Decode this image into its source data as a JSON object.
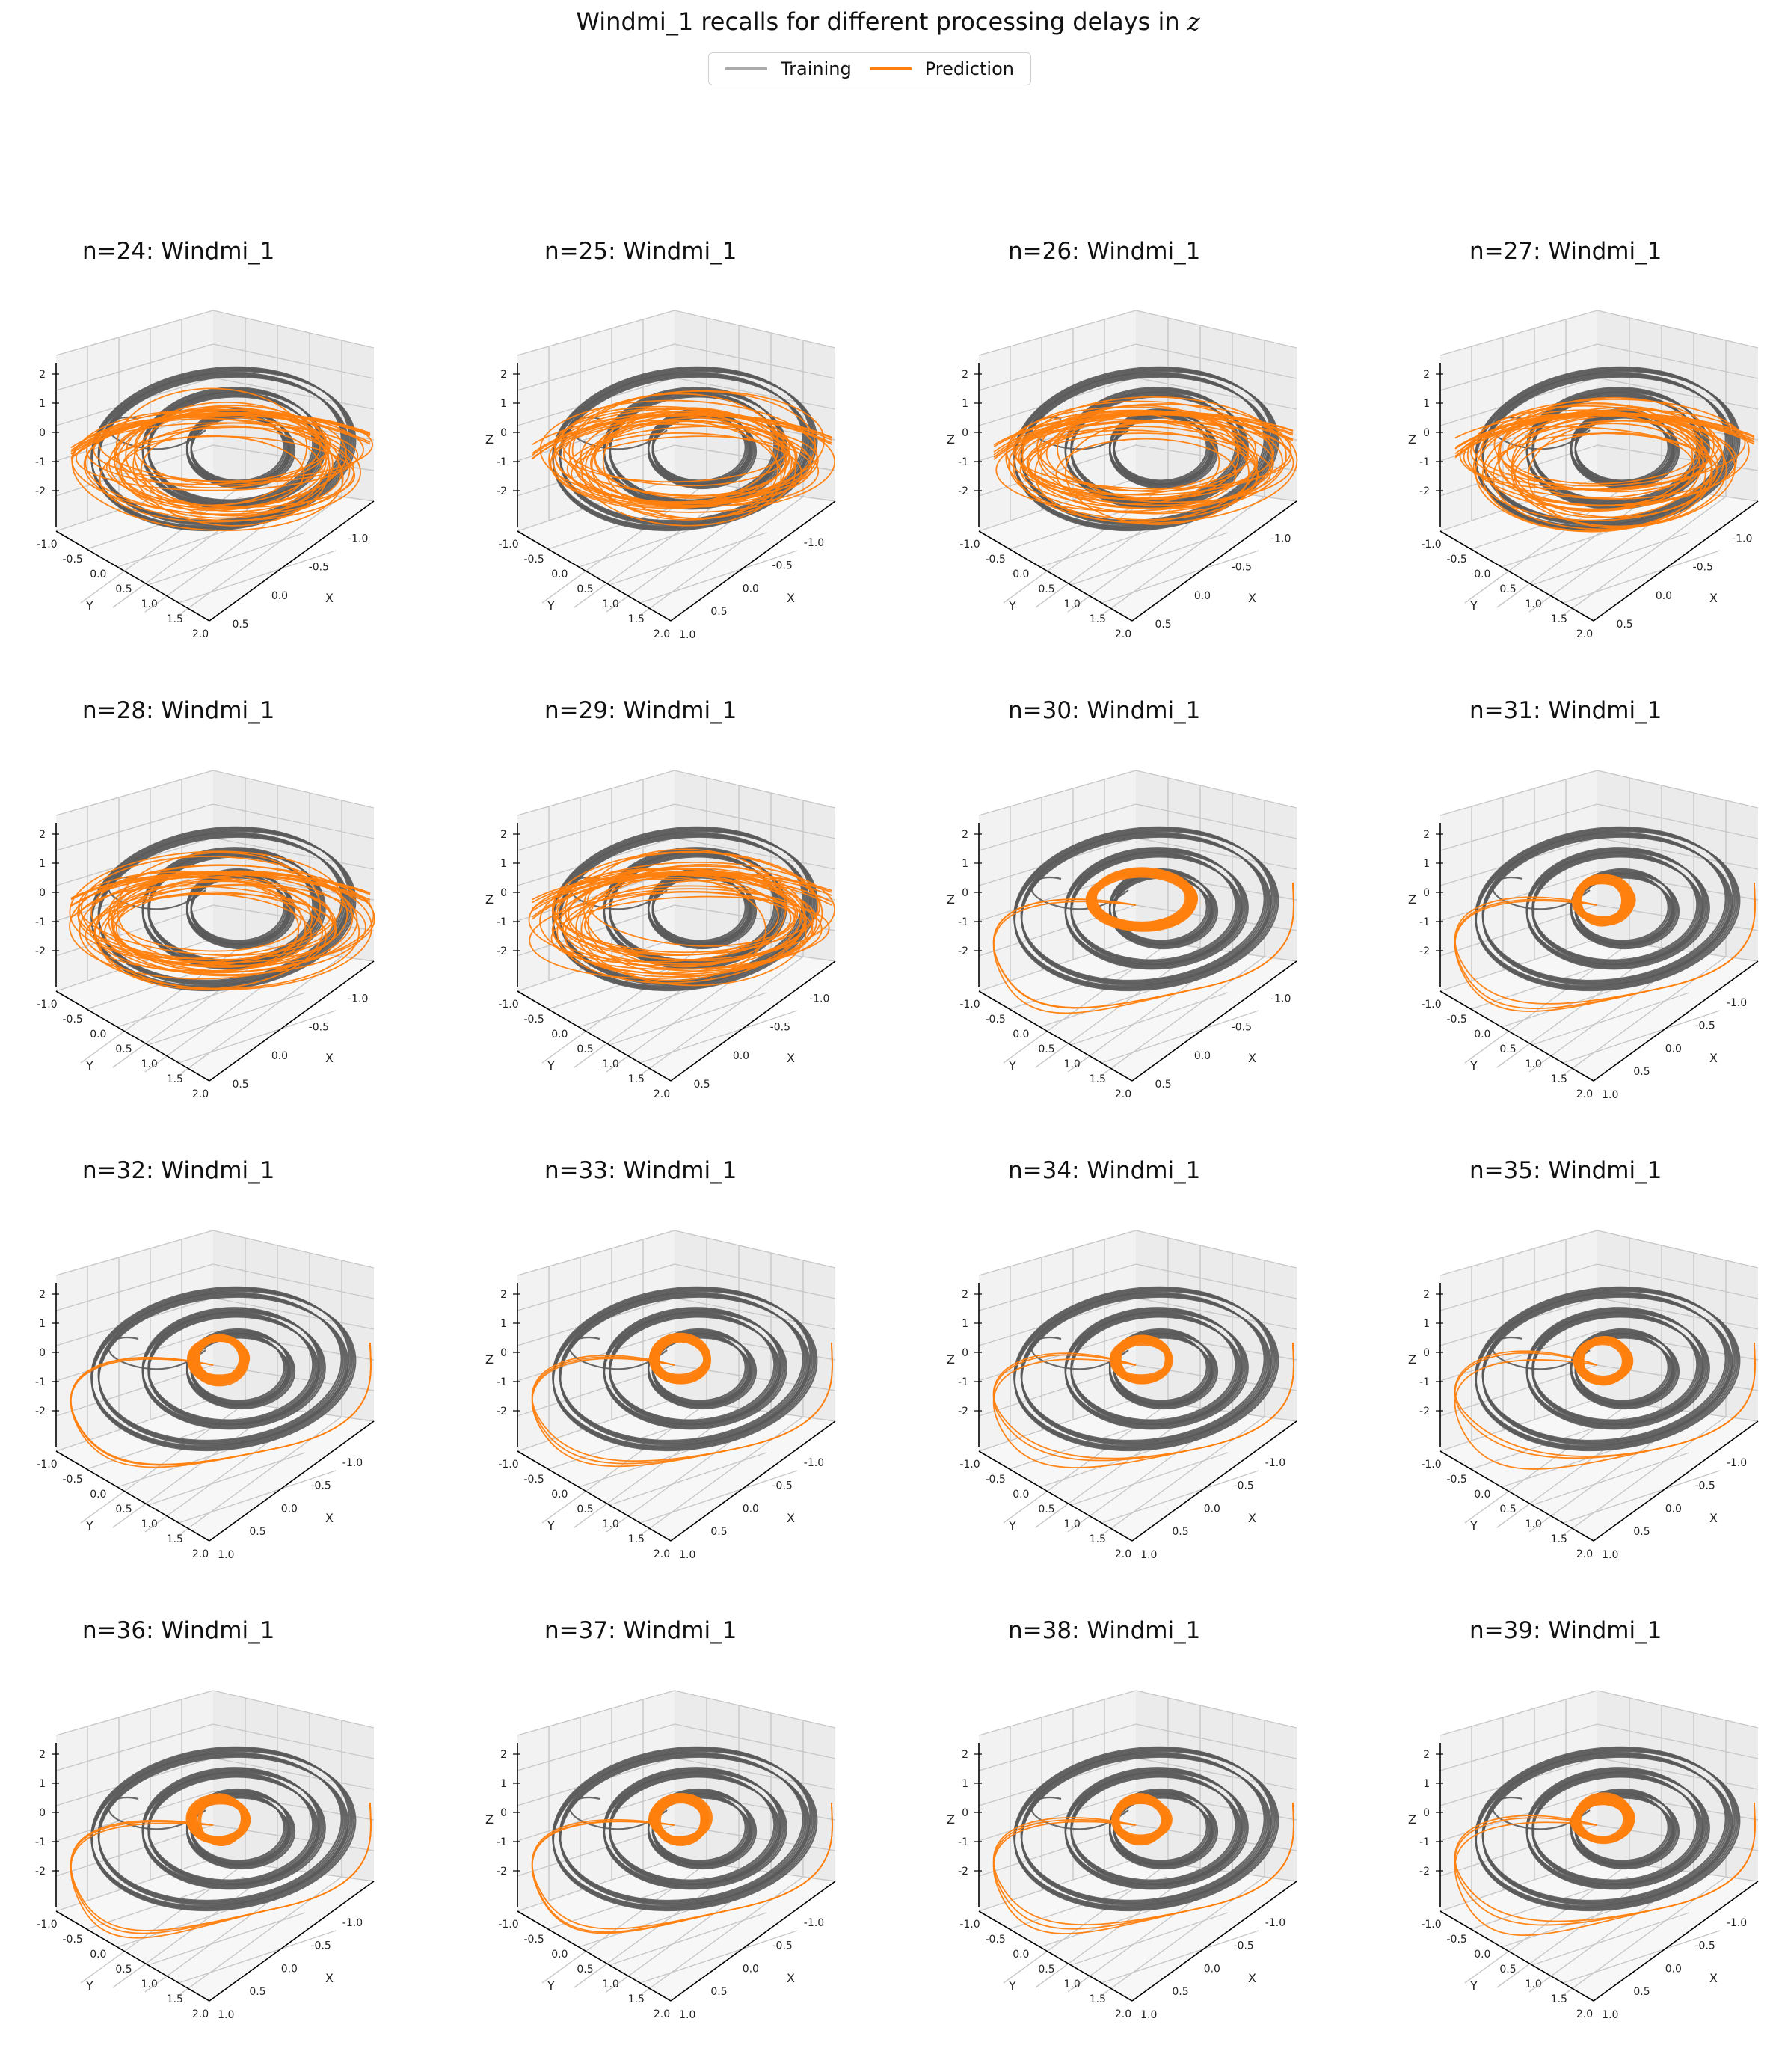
{
  "figure": {
    "title": "Windmi_1 recalls for different processing delays in z",
    "title_prefix": "Windmi_1 recalls for different processing delays in ",
    "title_var": "z"
  },
  "legend": [
    {
      "label": "Training",
      "color": "#aaaaaa"
    },
    {
      "label": "Prediction",
      "color": "#ff7f0e"
    }
  ],
  "axes": {
    "xlabel": "X",
    "ylabel": "Y",
    "zlabel": "Z",
    "x_ticks": [
      "-1.0",
      "-0.5",
      "0.0",
      "0.5"
    ],
    "x_ticks_ext": [
      "-1.0",
      "-0.5",
      "0.0",
      "0.5",
      "1.0"
    ],
    "y_ticks": [
      "-1.0",
      "-0.5",
      "0.0",
      "0.5",
      "1.0",
      "1.5",
      "2.0"
    ],
    "z_ticks": [
      "2",
      "1",
      "0",
      "-1",
      "-2"
    ]
  },
  "chart_data": {
    "type": "line",
    "subtype": "3d-trajectory-grid",
    "layout": "4x4",
    "training_color": "#595959",
    "prediction_color": "#ff7f0e",
    "panels": [
      {
        "title": "n=24: Windmi_1",
        "show_zlabel": false,
        "x_ext": false
      },
      {
        "title": "n=25: Windmi_1",
        "show_zlabel": true,
        "x_ext": true
      },
      {
        "title": "n=26: Windmi_1",
        "show_zlabel": true,
        "x_ext": false
      },
      {
        "title": "n=27: Windmi_1",
        "show_zlabel": true,
        "x_ext": false
      },
      {
        "title": "n=28: Windmi_1",
        "show_zlabel": false,
        "x_ext": false
      },
      {
        "title": "n=29: Windmi_1",
        "show_zlabel": true,
        "x_ext": false
      },
      {
        "title": "n=30: Windmi_1",
        "show_zlabel": true,
        "x_ext": false
      },
      {
        "title": "n=31: Windmi_1",
        "show_zlabel": true,
        "x_ext": true
      },
      {
        "title": "n=32: Windmi_1",
        "show_zlabel": false,
        "x_ext": true
      },
      {
        "title": "n=33: Windmi_1",
        "show_zlabel": true,
        "x_ext": true
      },
      {
        "title": "n=34: Windmi_1",
        "show_zlabel": true,
        "x_ext": true
      },
      {
        "title": "n=35: Windmi_1",
        "show_zlabel": true,
        "x_ext": true
      },
      {
        "title": "n=36: Windmi_1",
        "show_zlabel": false,
        "x_ext": true
      },
      {
        "title": "n=37: Windmi_1",
        "show_zlabel": true,
        "x_ext": true
      },
      {
        "title": "n=38: Windmi_1",
        "show_zlabel": true,
        "x_ext": true
      },
      {
        "title": "n=39: Windmi_1",
        "show_zlabel": true,
        "x_ext": true
      }
    ]
  }
}
